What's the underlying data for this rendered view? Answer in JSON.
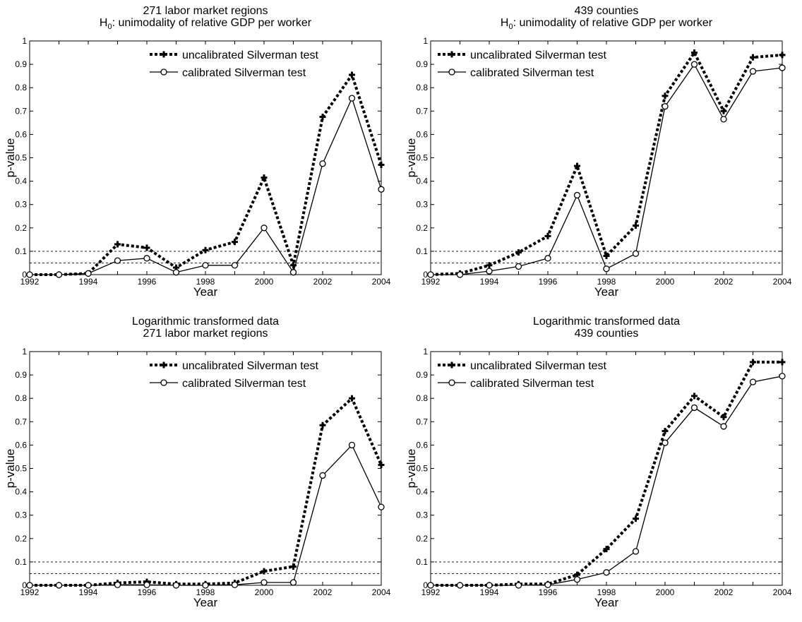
{
  "chart_data": [
    {
      "type": "line",
      "title_lines": [
        "271 labor market regions",
        "H0: unimodality of relative GDP per worker"
      ],
      "title_subscript_line": 1,
      "xlabel": "Year",
      "ylabel": "p-value",
      "xlim": [
        1992,
        2004
      ],
      "ylim": [
        0,
        1
      ],
      "xticks": [
        "1992",
        "1994",
        "1996",
        "1998",
        "2000",
        "2002",
        "2004"
      ],
      "yticks": [
        "0",
        "0.1",
        "0.2",
        "0.3",
        "0.4",
        "0.5",
        "0.6",
        "0.7",
        "0.8",
        "0.9",
        "1"
      ],
      "reference_lines": [
        0.05,
        0.1
      ],
      "legend_position": "top-right",
      "x": [
        1992,
        1993,
        1994,
        1995,
        1996,
        1997,
        1998,
        1999,
        2000,
        2001,
        2002,
        2003,
        2004
      ],
      "series": [
        {
          "name": "uncalibrated Silverman test",
          "style": "dotted-plus",
          "values": [
            0,
            0,
            0.005,
            0.13,
            0.115,
            0.03,
            0.105,
            0.14,
            0.415,
            0.04,
            0.675,
            0.855,
            0.47
          ]
        },
        {
          "name": "calibrated Silverman test",
          "style": "solid-circle",
          "values": [
            0,
            0,
            0.005,
            0.06,
            0.07,
            0.01,
            0.04,
            0.04,
            0.2,
            0.01,
            0.475,
            0.755,
            0.365
          ]
        }
      ]
    },
    {
      "type": "line",
      "title_lines": [
        "439 counties",
        "H0: unimodality of relative GDP per worker"
      ],
      "title_subscript_line": 1,
      "xlabel": "Year",
      "ylabel": "p-value",
      "xlim": [
        1992,
        2004
      ],
      "ylim": [
        0,
        1
      ],
      "xticks": [
        "1992",
        "1994",
        "1996",
        "1998",
        "2000",
        "2002",
        "2004"
      ],
      "yticks": [
        "0",
        "0.1",
        "0.2",
        "0.3",
        "0.4",
        "0.5",
        "0.6",
        "0.7",
        "0.8",
        "0.9",
        "1"
      ],
      "reference_lines": [
        0.05,
        0.1
      ],
      "legend_position": "top-left",
      "x": [
        1992,
        1993,
        1994,
        1995,
        1996,
        1997,
        1998,
        1999,
        2000,
        2001,
        2002,
        2003,
        2004
      ],
      "series": [
        {
          "name": "uncalibrated Silverman test",
          "style": "dotted-plus",
          "values": [
            0,
            0.005,
            0.04,
            0.095,
            0.165,
            0.465,
            0.08,
            0.21,
            0.765,
            0.95,
            0.7,
            0.93,
            0.94
          ]
        },
        {
          "name": "calibrated Silverman test",
          "style": "solid-circle",
          "values": [
            0,
            0,
            0.015,
            0.035,
            0.07,
            0.34,
            0.025,
            0.09,
            0.72,
            0.9,
            0.665,
            0.87,
            0.885
          ]
        }
      ]
    },
    {
      "type": "line",
      "title_lines": [
        "Logarithmic transformed data",
        "271 labor market regions"
      ],
      "xlabel": "Year",
      "ylabel": "p-value",
      "xlim": [
        1992,
        2004
      ],
      "ylim": [
        0,
        1
      ],
      "xticks": [
        "1992",
        "1994",
        "1996",
        "1998",
        "2000",
        "2002",
        "2004"
      ],
      "yticks": [
        "0",
        "0.1",
        "0.2",
        "0.3",
        "0.4",
        "0.5",
        "0.6",
        "0.7",
        "0.8",
        "0.9",
        "1"
      ],
      "reference_lines": [
        0.05,
        0.1
      ],
      "legend_position": "top-right",
      "x": [
        1992,
        1993,
        1994,
        1995,
        1996,
        1997,
        1998,
        1999,
        2000,
        2001,
        2002,
        2003,
        2004
      ],
      "series": [
        {
          "name": "uncalibrated Silverman test",
          "style": "dotted-plus",
          "values": [
            0,
            0,
            0,
            0.01,
            0.015,
            0.005,
            0.005,
            0.01,
            0.06,
            0.08,
            0.685,
            0.8,
            0.515
          ]
        },
        {
          "name": "calibrated Silverman test",
          "style": "solid-circle",
          "values": [
            0,
            0,
            0,
            0.002,
            0.002,
            0,
            0,
            0.002,
            0.012,
            0.012,
            0.47,
            0.6,
            0.335
          ]
        }
      ]
    },
    {
      "type": "line",
      "title_lines": [
        "Logarithmic transformed data",
        "439 counties"
      ],
      "xlabel": "Year",
      "ylabel": "p-value",
      "xlim": [
        1992,
        2004
      ],
      "ylim": [
        0,
        1
      ],
      "xticks": [
        "1992",
        "1994",
        "1996",
        "1998",
        "2000",
        "2002",
        "2004"
      ],
      "yticks": [
        "0",
        "0.1",
        "0.2",
        "0.3",
        "0.4",
        "0.5",
        "0.6",
        "0.7",
        "0.8",
        "0.9",
        "1"
      ],
      "reference_lines": [
        0.05,
        0.1
      ],
      "legend_position": "top-left",
      "x": [
        1992,
        1993,
        1994,
        1995,
        1996,
        1997,
        1998,
        1999,
        2000,
        2001,
        2002,
        2003,
        2004
      ],
      "series": [
        {
          "name": "uncalibrated Silverman test",
          "style": "dotted-plus",
          "values": [
            0,
            0,
            0,
            0.005,
            0.005,
            0.045,
            0.155,
            0.285,
            0.66,
            0.81,
            0.72,
            0.955,
            0.955
          ]
        },
        {
          "name": "calibrated Silverman test",
          "style": "solid-circle",
          "values": [
            0,
            0,
            0,
            0,
            0.002,
            0.025,
            0.055,
            0.145,
            0.61,
            0.76,
            0.68,
            0.87,
            0.895
          ]
        }
      ]
    }
  ]
}
